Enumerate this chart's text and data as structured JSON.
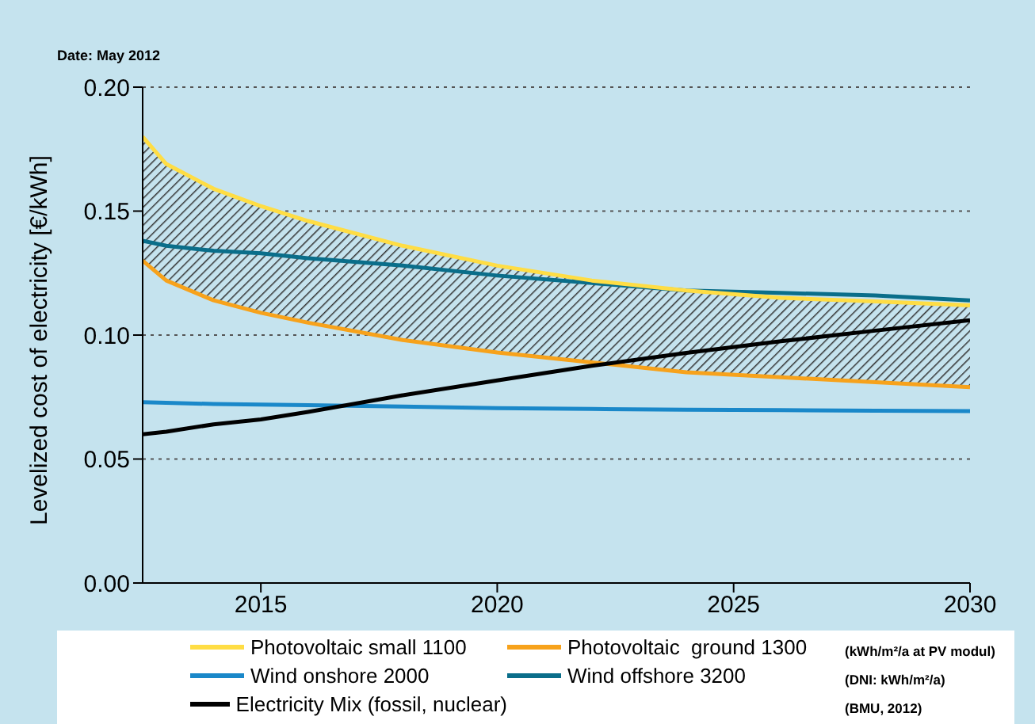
{
  "chart_data": {
    "type": "line",
    "ylabel": "Levelized cost of electricity [€/kWh]",
    "x": [
      2012.5,
      2013,
      2014,
      2015,
      2016,
      2018,
      2020,
      2022,
      2024,
      2026,
      2028,
      2030
    ],
    "series": [
      {
        "name": "Photovoltaic small 1100",
        "color": "#ffdd44",
        "values": [
          0.18,
          0.169,
          0.159,
          0.152,
          0.146,
          0.136,
          0.128,
          0.122,
          0.118,
          0.115,
          0.1136,
          0.112
        ],
        "upper": [
          0.18,
          0.169,
          0.159,
          0.152,
          0.146,
          0.136,
          0.128,
          0.122,
          0.118,
          0.115,
          0.1136,
          0.112
        ],
        "lower": [
          0.13,
          0.122,
          0.114,
          0.109,
          0.105,
          0.098,
          0.093,
          0.089,
          0.085,
          0.083,
          0.081,
          0.079
        ]
      },
      {
        "name": "Photovoltaic  ground 1300",
        "color": "#f7a21b",
        "values": [
          0.13,
          0.122,
          0.114,
          0.109,
          0.105,
          0.098,
          0.093,
          0.089,
          0.085,
          0.083,
          0.081,
          0.079
        ]
      },
      {
        "name": "Wind onshore 2000",
        "color": "#1a88c9",
        "values": [
          0.0729,
          0.0727,
          0.0722,
          0.072,
          0.0717,
          0.0712,
          0.0705,
          0.0702,
          0.0699,
          0.0697,
          0.0695,
          0.0693
        ]
      },
      {
        "name": "Wind offshore 3200",
        "color": "#0a6e8a",
        "values": [
          0.138,
          0.136,
          0.134,
          0.133,
          0.131,
          0.128,
          0.124,
          0.121,
          0.118,
          0.117,
          0.116,
          0.114
        ]
      },
      {
        "name": "Electricity Mix (fossil, nuclear)",
        "color": "#000000",
        "values": [
          0.06,
          0.061,
          0.064,
          0.066,
          0.069,
          0.0757,
          0.0817,
          0.0876,
          0.0928,
          0.0975,
          0.1018,
          0.106
        ]
      }
    ],
    "xlim": [
      2012.5,
      2030
    ],
    "xticks": [
      2015,
      2020,
      2025,
      2030
    ],
    "ylim": [
      0,
      0.2
    ],
    "yticks": [
      {
        "value": 0,
        "label": "0.00"
      },
      {
        "value": 0.05,
        "label": "0.05"
      },
      {
        "value": 0.1,
        "label": "0.10"
      },
      {
        "value": 0.15,
        "label": "0.15"
      },
      {
        "value": 0.2,
        "label": "0.20"
      }
    ],
    "grid": "y",
    "legend": "bottom",
    "line_style": "solid",
    "marker": "none",
    "annotations": [
      "Date: May 2012",
      "(kWh/m²/a at PV modul)",
      "(DNI: kWh/m²/a)",
      "(BMU, 2012)"
    ]
  }
}
